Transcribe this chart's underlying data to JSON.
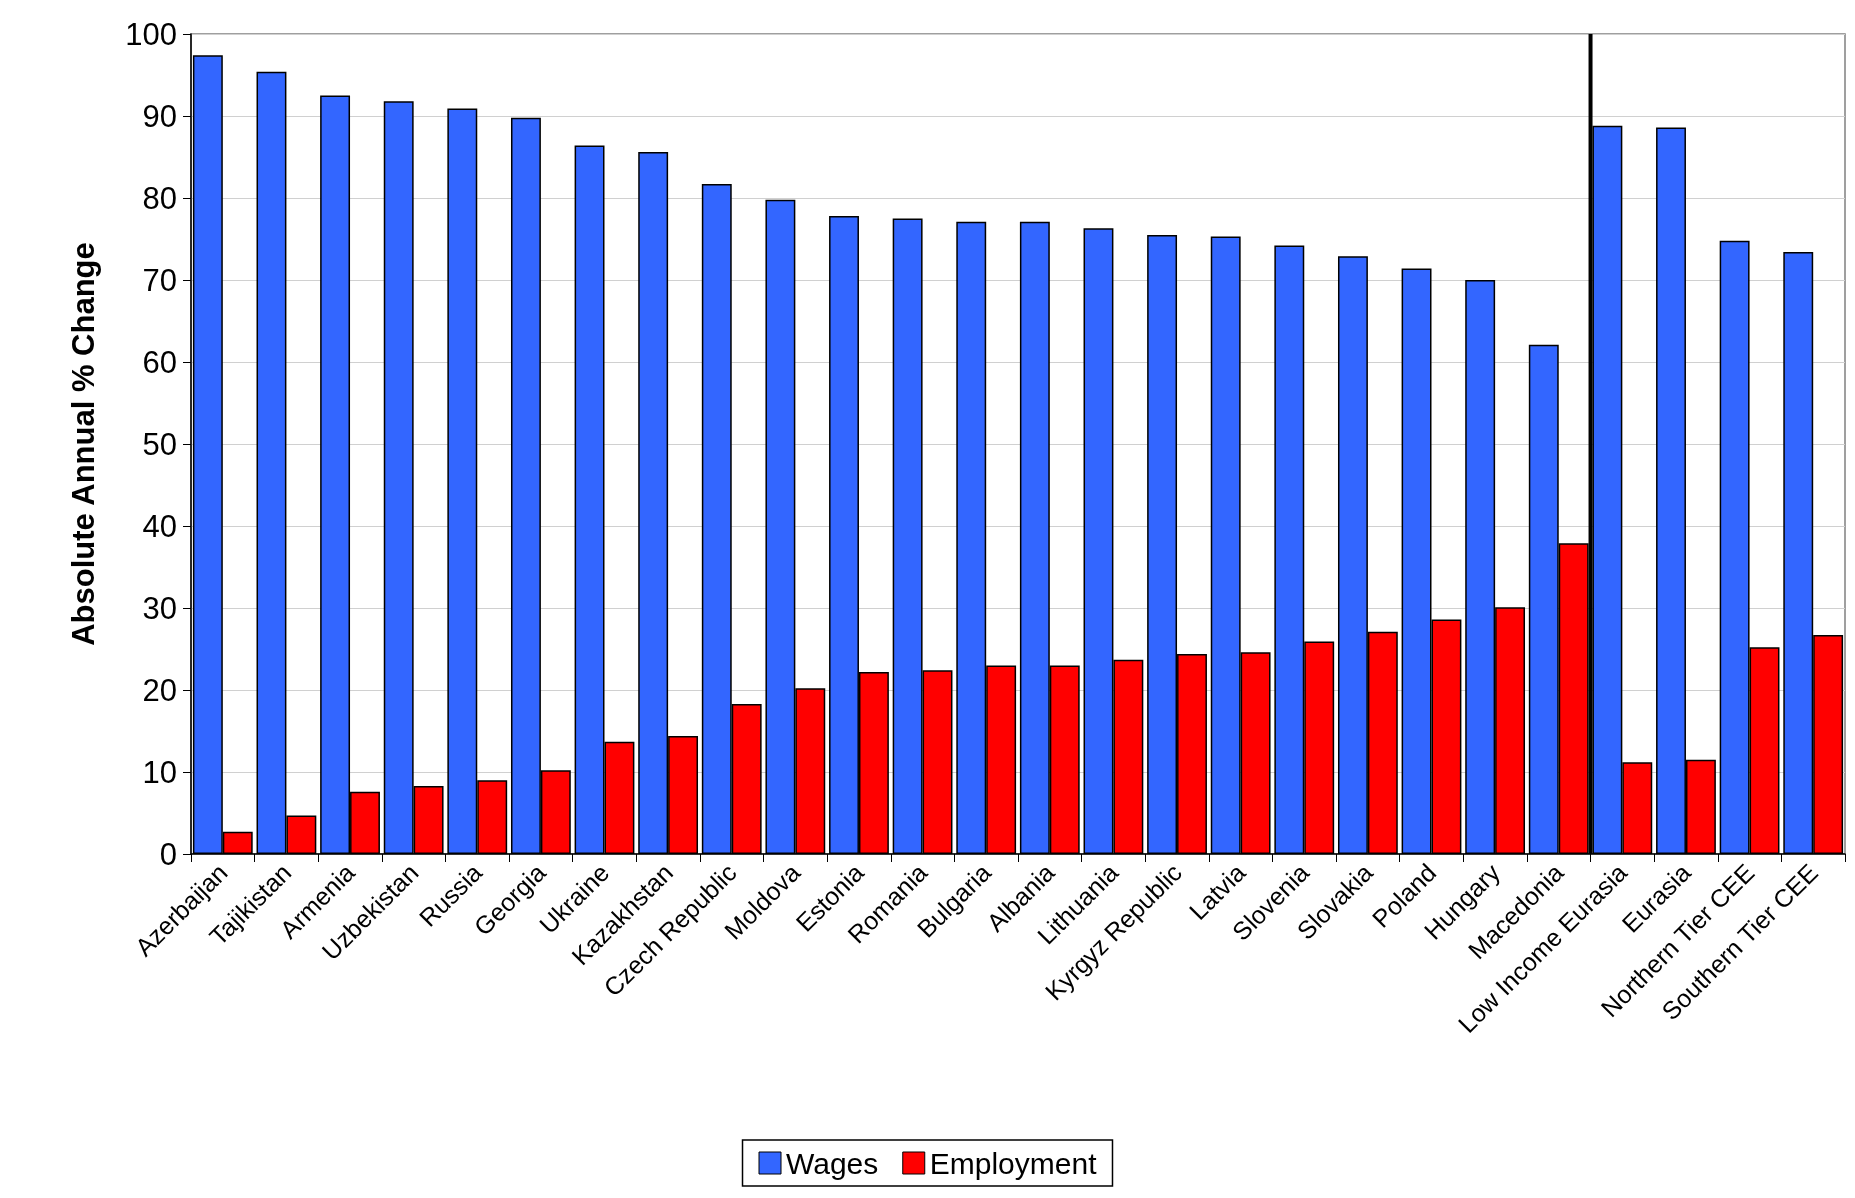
{
  "chart_data": {
    "type": "bar",
    "ylabel": "Absolute Annual % Change",
    "categories": [
      "Azerbaijan",
      "Tajikistan",
      "Armenia",
      "Uzbekistan",
      "Russia",
      "Georgia",
      "Ukraine",
      "Kazakhstan",
      "Czech Republic",
      "Moldova",
      "Estonia",
      "Romania",
      "Bulgaria",
      "Albania",
      "Lithuania",
      "Kyrgyz Republic",
      "Latvia",
      "Slovenia",
      "Slovakia",
      "Poland",
      "Hungary",
      "Macedonia",
      "Low Income Eurasia",
      "Eurasia",
      "Northern Tier CEE",
      "Southern Tier CEE"
    ],
    "series": [
      {
        "name": "Wages",
        "color": "#3366ff",
        "values": [
          97.4,
          95.4,
          92.5,
          91.8,
          90.9,
          89.8,
          86.4,
          85.6,
          81.7,
          79.8,
          77.8,
          77.5,
          77.1,
          77.1,
          76.3,
          75.5,
          75.3,
          74.2,
          72.9,
          71.4,
          70.0,
          62.1,
          88.8,
          88.6,
          74.8,
          73.4
        ]
      },
      {
        "name": "Employment",
        "color": "#ff0000",
        "values": [
          2.7,
          4.7,
          7.6,
          8.3,
          9.0,
          10.2,
          13.7,
          14.4,
          18.3,
          20.2,
          22.2,
          22.4,
          23.0,
          23.0,
          23.7,
          24.4,
          24.6,
          25.9,
          27.1,
          28.6,
          30.1,
          37.9,
          11.2,
          11.5,
          25.2,
          26.7
        ]
      }
    ],
    "ylim": [
      0,
      100
    ],
    "yticks": [
      0,
      10,
      20,
      30,
      40,
      50,
      60,
      70,
      80,
      90,
      100
    ],
    "grid": "y",
    "legend": "bottom",
    "ref_lines": [
      {
        "axis": "x",
        "value": "Low Income Eurasia",
        "color": "#000000"
      }
    ]
  }
}
